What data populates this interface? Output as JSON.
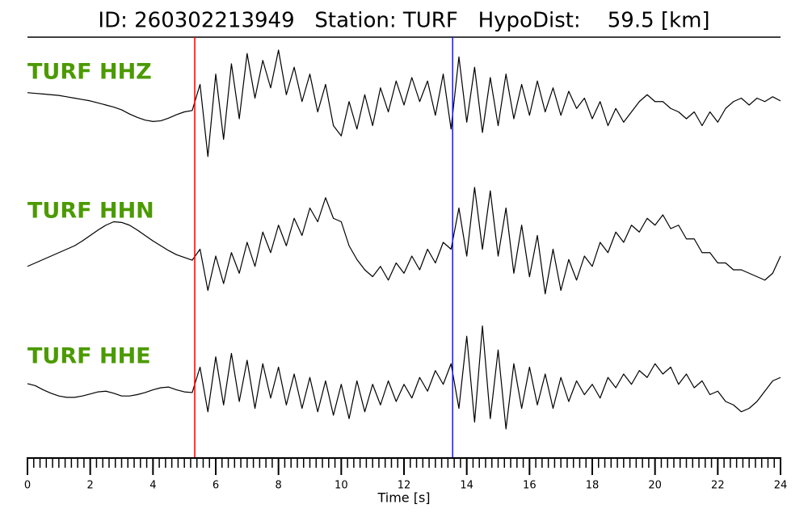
{
  "chart_data": {
    "type": "line",
    "title": "ID: 260302213949   Station: TURF   HypoDist:    59.5 [km]",
    "xlabel": "Time [s]",
    "xlim": [
      0,
      24
    ],
    "xticks": [
      0,
      2,
      4,
      6,
      8,
      10,
      12,
      14,
      16,
      18,
      20,
      22,
      24
    ],
    "xminor_step": 0.2,
    "ylim": [
      -1,
      1
    ],
    "label_color": "#4c9a00",
    "markers": [
      {
        "x": 5.33,
        "color": "#ff0000"
      },
      {
        "x": 13.55,
        "color": "#1a1ad6"
      }
    ],
    "x": [
      0,
      0.25,
      0.5,
      0.75,
      1,
      1.25,
      1.5,
      1.75,
      2,
      2.25,
      2.5,
      2.75,
      3,
      3.25,
      3.5,
      3.75,
      4,
      4.25,
      4.5,
      4.75,
      5,
      5.25,
      5.5,
      5.75,
      6,
      6.25,
      6.5,
      6.75,
      7,
      7.25,
      7.5,
      7.75,
      8,
      8.25,
      8.5,
      8.75,
      9,
      9.25,
      9.5,
      9.75,
      10,
      10.25,
      10.5,
      10.75,
      11,
      11.25,
      11.5,
      11.75,
      12,
      12.25,
      12.5,
      12.75,
      13,
      13.25,
      13.5,
      13.75,
      14,
      14.25,
      14.5,
      14.75,
      15,
      15.25,
      15.5,
      15.75,
      16,
      16.25,
      16.5,
      16.75,
      17,
      17.25,
      17.5,
      17.75,
      18,
      18.25,
      18.5,
      18.75,
      19,
      19.25,
      19.5,
      19.75,
      20,
      20.25,
      20.5,
      20.75,
      21,
      21.25,
      21.5,
      21.75,
      22,
      22.25,
      22.5,
      22.75,
      23,
      23.25,
      23.5,
      23.75,
      24
    ],
    "series": [
      {
        "name": "TURF HHZ",
        "color": "#000000",
        "values": [
          0.18,
          0.17,
          0.16,
          0.15,
          0.14,
          0.12,
          0.1,
          0.08,
          0.06,
          0.03,
          0,
          -0.03,
          -0.07,
          -0.13,
          -0.18,
          -0.22,
          -0.24,
          -0.23,
          -0.19,
          -0.14,
          -0.1,
          -0.08,
          0.3,
          -0.75,
          0.45,
          -0.5,
          0.6,
          -0.2,
          0.75,
          0.1,
          0.65,
          0.25,
          0.8,
          0.15,
          0.55,
          0.05,
          0.45,
          -0.1,
          0.3,
          -0.3,
          -0.45,
          0.05,
          -0.35,
          0.15,
          -0.3,
          0.25,
          -0.1,
          0.35,
          0,
          0.4,
          0.05,
          0.35,
          -0.15,
          0.45,
          -0.35,
          0.7,
          -0.25,
          0.55,
          -0.4,
          0.4,
          -0.3,
          0.45,
          -0.2,
          0.3,
          -0.15,
          0.35,
          -0.1,
          0.25,
          -0.15,
          0.2,
          -0.05,
          0.1,
          -0.2,
          0.05,
          -0.3,
          -0.05,
          -0.25,
          -0.1,
          0.05,
          0.15,
          0.05,
          0.05,
          -0.05,
          -0.1,
          -0.2,
          -0.1,
          -0.3,
          -0.1,
          -0.25,
          -0.05,
          0.05,
          0.1,
          0,
          0.1,
          0.05,
          0.12,
          0.06
        ]
      },
      {
        "name": "TURF HHN",
        "color": "#000000",
        "values": [
          -0.35,
          -0.3,
          -0.25,
          -0.2,
          -0.15,
          -0.1,
          -0.05,
          0.02,
          0.1,
          0.18,
          0.25,
          0.3,
          0.29,
          0.25,
          0.18,
          0.1,
          0.02,
          -0.05,
          -0.12,
          -0.18,
          -0.22,
          -0.26,
          -0.1,
          -0.7,
          -0.2,
          -0.6,
          -0.15,
          -0.45,
          0,
          -0.35,
          0.15,
          -0.15,
          0.25,
          -0.05,
          0.35,
          0.1,
          0.5,
          0.3,
          0.65,
          0.35,
          0.3,
          -0.05,
          -0.25,
          -0.4,
          -0.5,
          -0.35,
          -0.55,
          -0.3,
          -0.45,
          -0.2,
          -0.4,
          -0.1,
          -0.3,
          0,
          -0.1,
          0.5,
          -0.2,
          0.8,
          -0.1,
          0.75,
          -0.2,
          0.5,
          -0.45,
          0.25,
          -0.5,
          0.1,
          -0.75,
          -0.1,
          -0.7,
          -0.25,
          -0.55,
          -0.2,
          -0.35,
          0,
          -0.15,
          0.15,
          0,
          0.25,
          0.15,
          0.35,
          0.25,
          0.4,
          0.2,
          0.25,
          0.05,
          0.05,
          -0.15,
          -0.15,
          -0.3,
          -0.3,
          -0.4,
          -0.4,
          -0.45,
          -0.5,
          -0.55,
          -0.45,
          -0.2
        ]
      },
      {
        "name": "TURF HHE",
        "color": "#000000",
        "values": [
          0.06,
          0.03,
          -0.03,
          -0.08,
          -0.12,
          -0.14,
          -0.14,
          -0.12,
          -0.09,
          -0.06,
          -0.05,
          -0.08,
          -0.12,
          -0.12,
          -0.1,
          -0.07,
          -0.03,
          0,
          0.01,
          -0.03,
          -0.06,
          -0.07,
          0.3,
          -0.35,
          0.45,
          -0.25,
          0.5,
          -0.2,
          0.4,
          -0.3,
          0.35,
          -0.15,
          0.3,
          -0.25,
          0.2,
          -0.3,
          0.15,
          -0.35,
          0.1,
          -0.4,
          0.05,
          -0.45,
          0.1,
          -0.35,
          0.05,
          -0.25,
          0.1,
          -0.2,
          0.05,
          -0.15,
          0.15,
          -0.05,
          0.25,
          0.05,
          0.35,
          -0.3,
          0.75,
          -0.5,
          0.9,
          -0.45,
          0.55,
          -0.6,
          0.35,
          -0.3,
          0.3,
          -0.25,
          0.2,
          -0.3,
          0.15,
          -0.2,
          0.1,
          -0.1,
          0.05,
          -0.15,
          0.15,
          0,
          0.2,
          0.05,
          0.25,
          0.15,
          0.35,
          0.2,
          0.3,
          0.05,
          0.2,
          0,
          0.1,
          -0.1,
          -0.05,
          -0.2,
          -0.25,
          -0.35,
          -0.3,
          -0.2,
          -0.05,
          0.1,
          0.15
        ]
      }
    ]
  }
}
